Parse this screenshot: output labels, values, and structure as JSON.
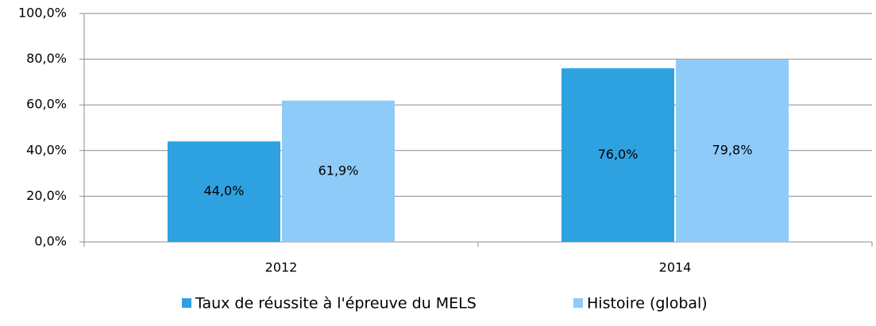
{
  "chart_data": {
    "type": "bar",
    "categories": [
      "2012",
      "2014"
    ],
    "series": [
      {
        "name": "Taux de réussite à l'épreuve du MELS",
        "color": "#2ea1e0",
        "values": [
          44.0,
          76.0
        ],
        "value_labels": [
          "44,0%",
          "76,0%"
        ]
      },
      {
        "name": "Histoire (global)",
        "color": "#8ecbf9",
        "values": [
          61.9,
          79.8
        ],
        "value_labels": [
          "61,9%",
          "79,8%"
        ]
      }
    ],
    "ylim": [
      0,
      100
    ],
    "yticks": [
      {
        "value": 0,
        "label": "0,0%"
      },
      {
        "value": 20,
        "label": "20,0%"
      },
      {
        "value": 40,
        "label": "40,0%"
      },
      {
        "value": 60,
        "label": "60,0%"
      },
      {
        "value": 80,
        "label": "80,0%"
      },
      {
        "value": 100,
        "label": "100,0%"
      }
    ],
    "grid": true,
    "legend": "bottom"
  }
}
